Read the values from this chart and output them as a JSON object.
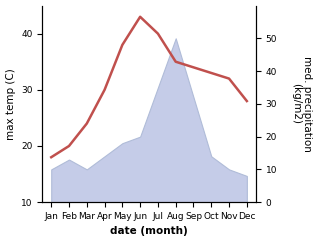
{
  "months": [
    "Jan",
    "Feb",
    "Mar",
    "Apr",
    "May",
    "Jun",
    "Jul",
    "Aug",
    "Sep",
    "Oct",
    "Nov",
    "Dec"
  ],
  "month_positions": [
    1,
    2,
    3,
    4,
    5,
    6,
    7,
    8,
    9,
    10,
    11,
    12
  ],
  "temperature": [
    18,
    20,
    24,
    30,
    38,
    43,
    40,
    35,
    34,
    33,
    32,
    28
  ],
  "precipitation": [
    10,
    13,
    10,
    14,
    18,
    20,
    35,
    50,
    32,
    14,
    10,
    8
  ],
  "temp_color": "#c0504d",
  "precip_fill_color": "#c5cce8",
  "precip_edge_color": "#b0bcd8",
  "temp_ylim": [
    10,
    45
  ],
  "precip_ylim": [
    0,
    60
  ],
  "temp_yticks": [
    10,
    20,
    30,
    40
  ],
  "precip_yticks": [
    0,
    10,
    20,
    30,
    40,
    50
  ],
  "ylabel_left": "max temp (C)",
  "ylabel_right": "med. precipitation\n(kg/m2)",
  "xlabel": "date (month)",
  "bg_color": "#ffffff",
  "label_fontsize": 7.5,
  "tick_fontsize": 6.5,
  "linewidth": 1.8
}
